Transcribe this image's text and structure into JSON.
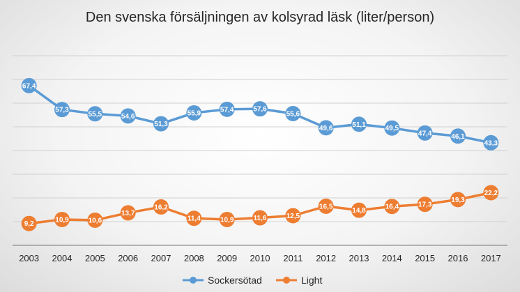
{
  "chart_data": {
    "type": "line",
    "title": "Den svenska försäljningen av kolsyrad läsk (liter/person)",
    "xlabel": "",
    "ylabel": "",
    "categories": [
      "2003",
      "2004",
      "2005",
      "2006",
      "2007",
      "2008",
      "2009",
      "2010",
      "2011",
      "2012",
      "2013",
      "2014",
      "2015",
      "2016",
      "2017"
    ],
    "series": [
      {
        "name": "Sockersötad",
        "color": "#5B9BD5",
        "values": [
          67.4,
          57.3,
          55.5,
          54.6,
          51.3,
          55.9,
          57.4,
          57.6,
          55.6,
          49.6,
          51.1,
          49.5,
          47.4,
          46.1,
          43.3
        ],
        "labels": [
          "67,4",
          "57,3",
          "55,5",
          "54,6",
          "51,3",
          "55,9",
          "57,4",
          "57,6",
          "55,6",
          "49,6",
          "51,1",
          "49,5",
          "47,4",
          "46,1",
          "43,3"
        ]
      },
      {
        "name": "Light",
        "color": "#ED7D31",
        "values": [
          9.2,
          10.9,
          10.6,
          13.7,
          16.2,
          11.4,
          10.9,
          11.6,
          12.5,
          16.5,
          14.8,
          16.4,
          17.3,
          19.3,
          22.2
        ],
        "labels": [
          "9,2",
          "10,9",
          "10,6",
          "13,7",
          "16,2",
          "11,4",
          "10,9",
          "11,6",
          "12,5",
          "16,5",
          "14,8",
          "16,4",
          "17,3",
          "19,3",
          "22,2"
        ]
      }
    ],
    "ylim": [
      0,
      80
    ],
    "y_tick_labels_visible": false,
    "grid": true,
    "legend": "bottom"
  }
}
